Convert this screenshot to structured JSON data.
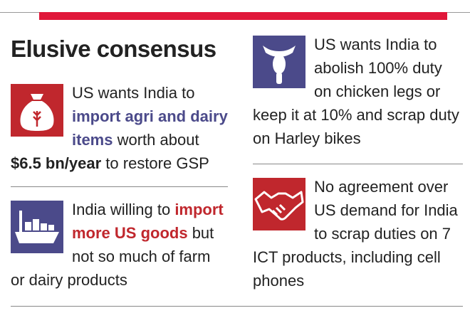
{
  "title": "Elusive consensus",
  "items": [
    {
      "text": [
        "US wants India to ",
        "import agri and dairy items",
        " worth about ",
        "$6.5 bn/year",
        " to restore GSP"
      ]
    },
    {
      "text": [
        "India willing to ",
        "import more US goods",
        " but not so much of farm or dairy products"
      ]
    },
    {
      "text": [
        "US wants India to abolish 100% duty on chicken legs or keep it at 10% and scrap duty on Harley bikes"
      ]
    },
    {
      "text": [
        "No agreement over US demand for India to scrap duties on 7 ICT products, including cell phones"
      ]
    }
  ]
}
